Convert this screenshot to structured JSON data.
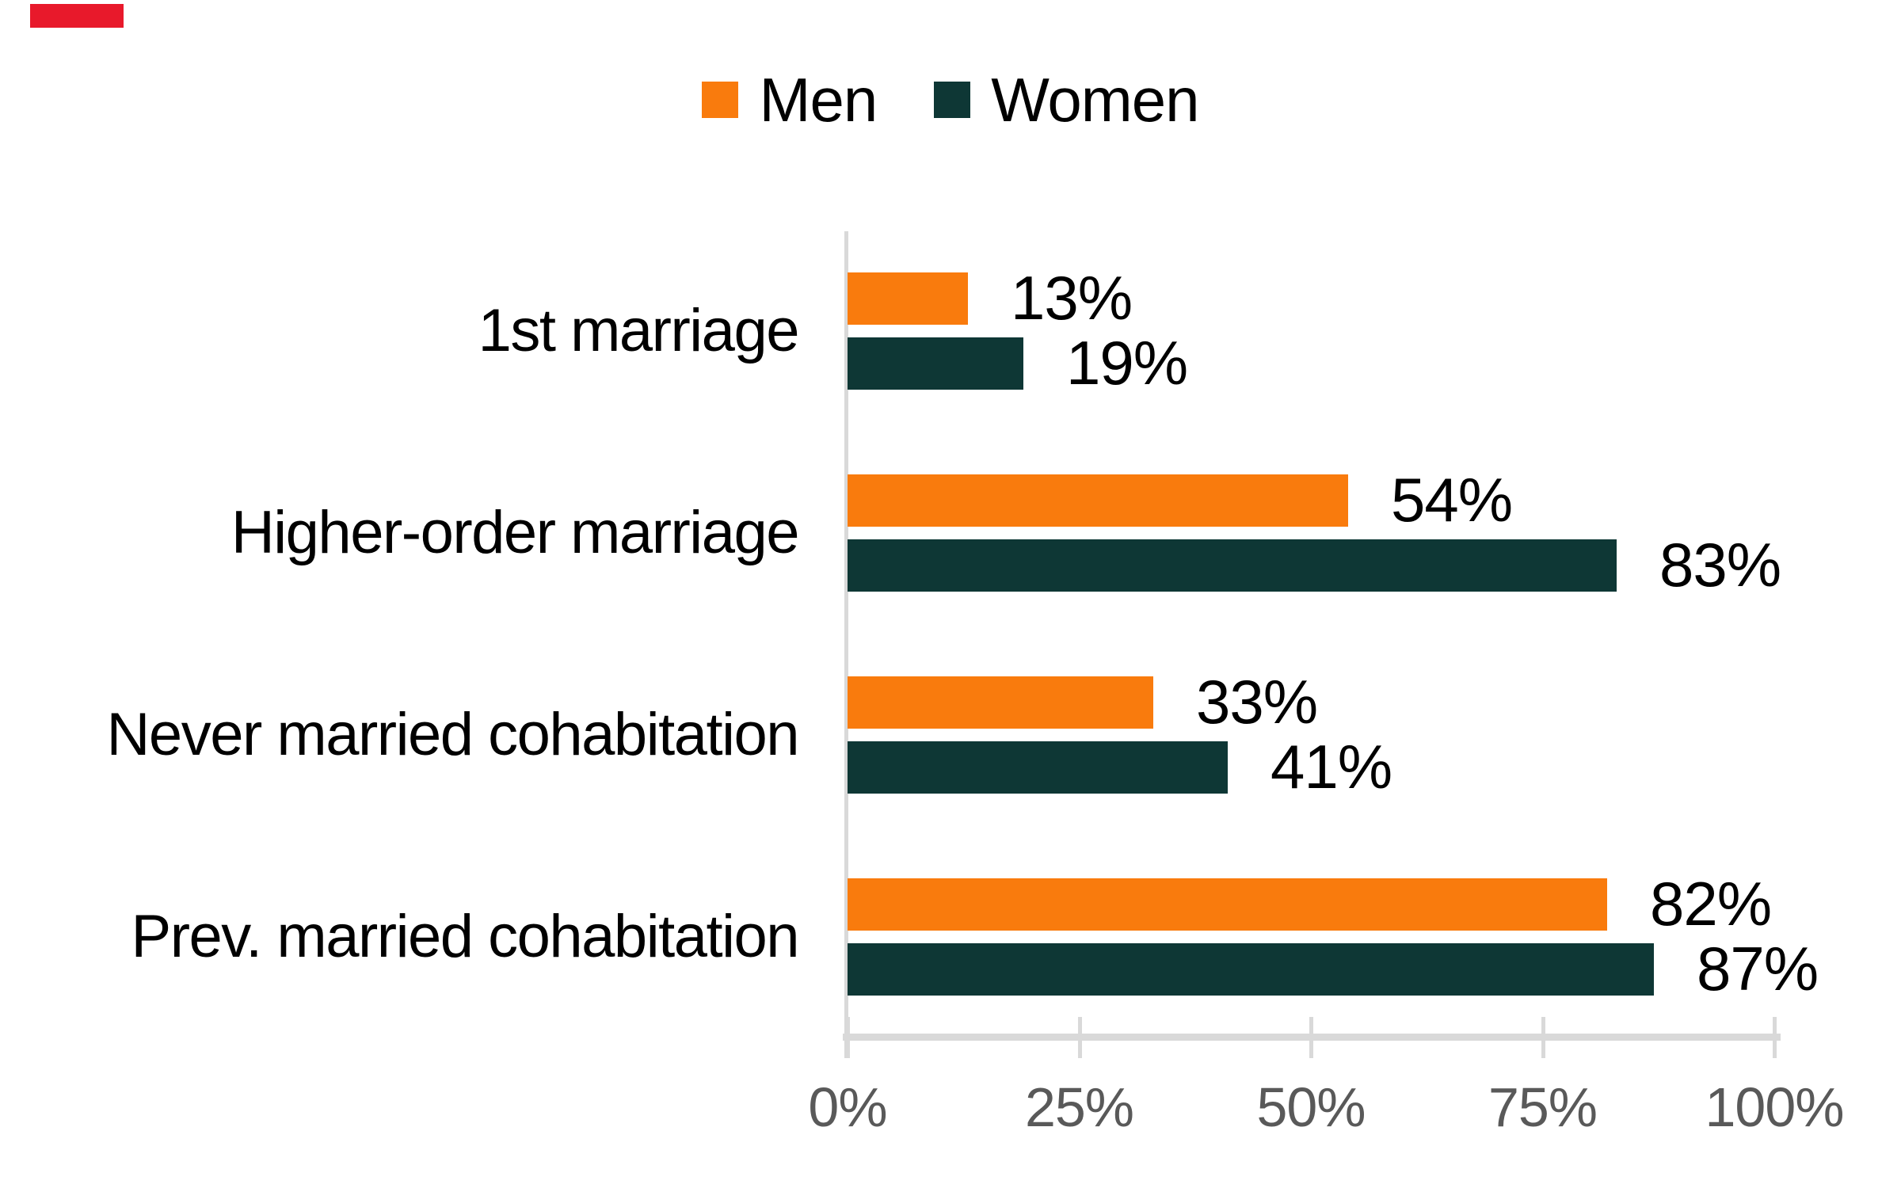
{
  "page": {
    "background": "#FFFFFF"
  },
  "accent_bar": {
    "color": "#E8192B"
  },
  "chart_data": {
    "type": "bar",
    "orientation": "horizontal",
    "title": "",
    "categories": [
      "1st marriage",
      "Higher-order marriage",
      "Never married cohabitation",
      "Prev. married cohabitation"
    ],
    "series": [
      {
        "name": "Men",
        "color": "#F97B0D",
        "values": [
          13,
          54,
          33,
          82
        ],
        "labels": [
          "13%",
          "54%",
          "33%",
          "82%"
        ]
      },
      {
        "name": "Women",
        "color": "#0E3735",
        "values": [
          19,
          83,
          41,
          87
        ],
        "labels": [
          "19%",
          "83%",
          "41%",
          "87%"
        ]
      }
    ],
    "xlabel": "",
    "ylabel": "",
    "x_axis": {
      "tick_labels": [
        "0%",
        "25%",
        "50%",
        "75%",
        "100%"
      ],
      "range": [
        0,
        100
      ],
      "tick_label_color": "#595959",
      "axis_line_color": "#D9D9D9"
    },
    "legend": {
      "position": "top-center",
      "entries": [
        "Men",
        "Women"
      ]
    },
    "grid": false,
    "data_label_color": "#000000",
    "category_label_color": "#000000"
  }
}
